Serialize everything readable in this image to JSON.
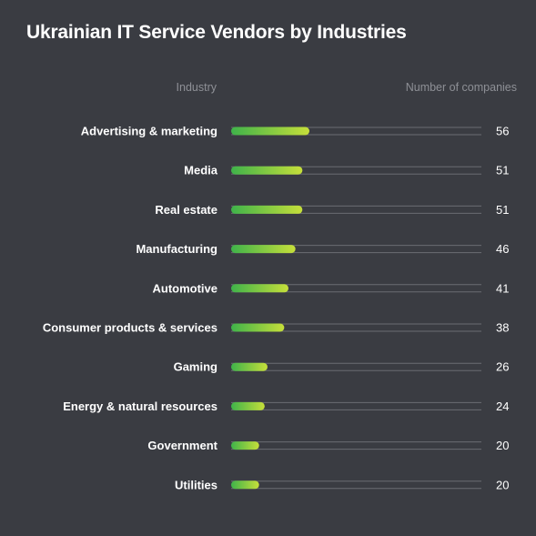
{
  "header": {
    "title": "Ukrainian IT Service Vendors by Industries",
    "industry_col": "Industry",
    "count_col": "Number of companies"
  },
  "colors": {
    "background": "#3a3c42",
    "bar_start": "#3fb34a",
    "bar_end": "#c6df3a",
    "track": "#6a6c72"
  },
  "chart_data": {
    "type": "bar",
    "orientation": "horizontal",
    "categories": [
      "Advertising & marketing",
      "Media",
      "Real estate",
      "Manufacturing",
      "Automotive",
      "Consumer products & services",
      "Gaming",
      "Energy & natural resources",
      "Government",
      "Utilities"
    ],
    "values": [
      56,
      51,
      51,
      46,
      41,
      38,
      26,
      24,
      20,
      20
    ],
    "title": "Ukrainian IT Service Vendors by Industries",
    "xlabel": "Number of companies",
    "ylabel": "Industry",
    "xlim": [
      0,
      180
    ],
    "grid": false,
    "legend": "none"
  }
}
